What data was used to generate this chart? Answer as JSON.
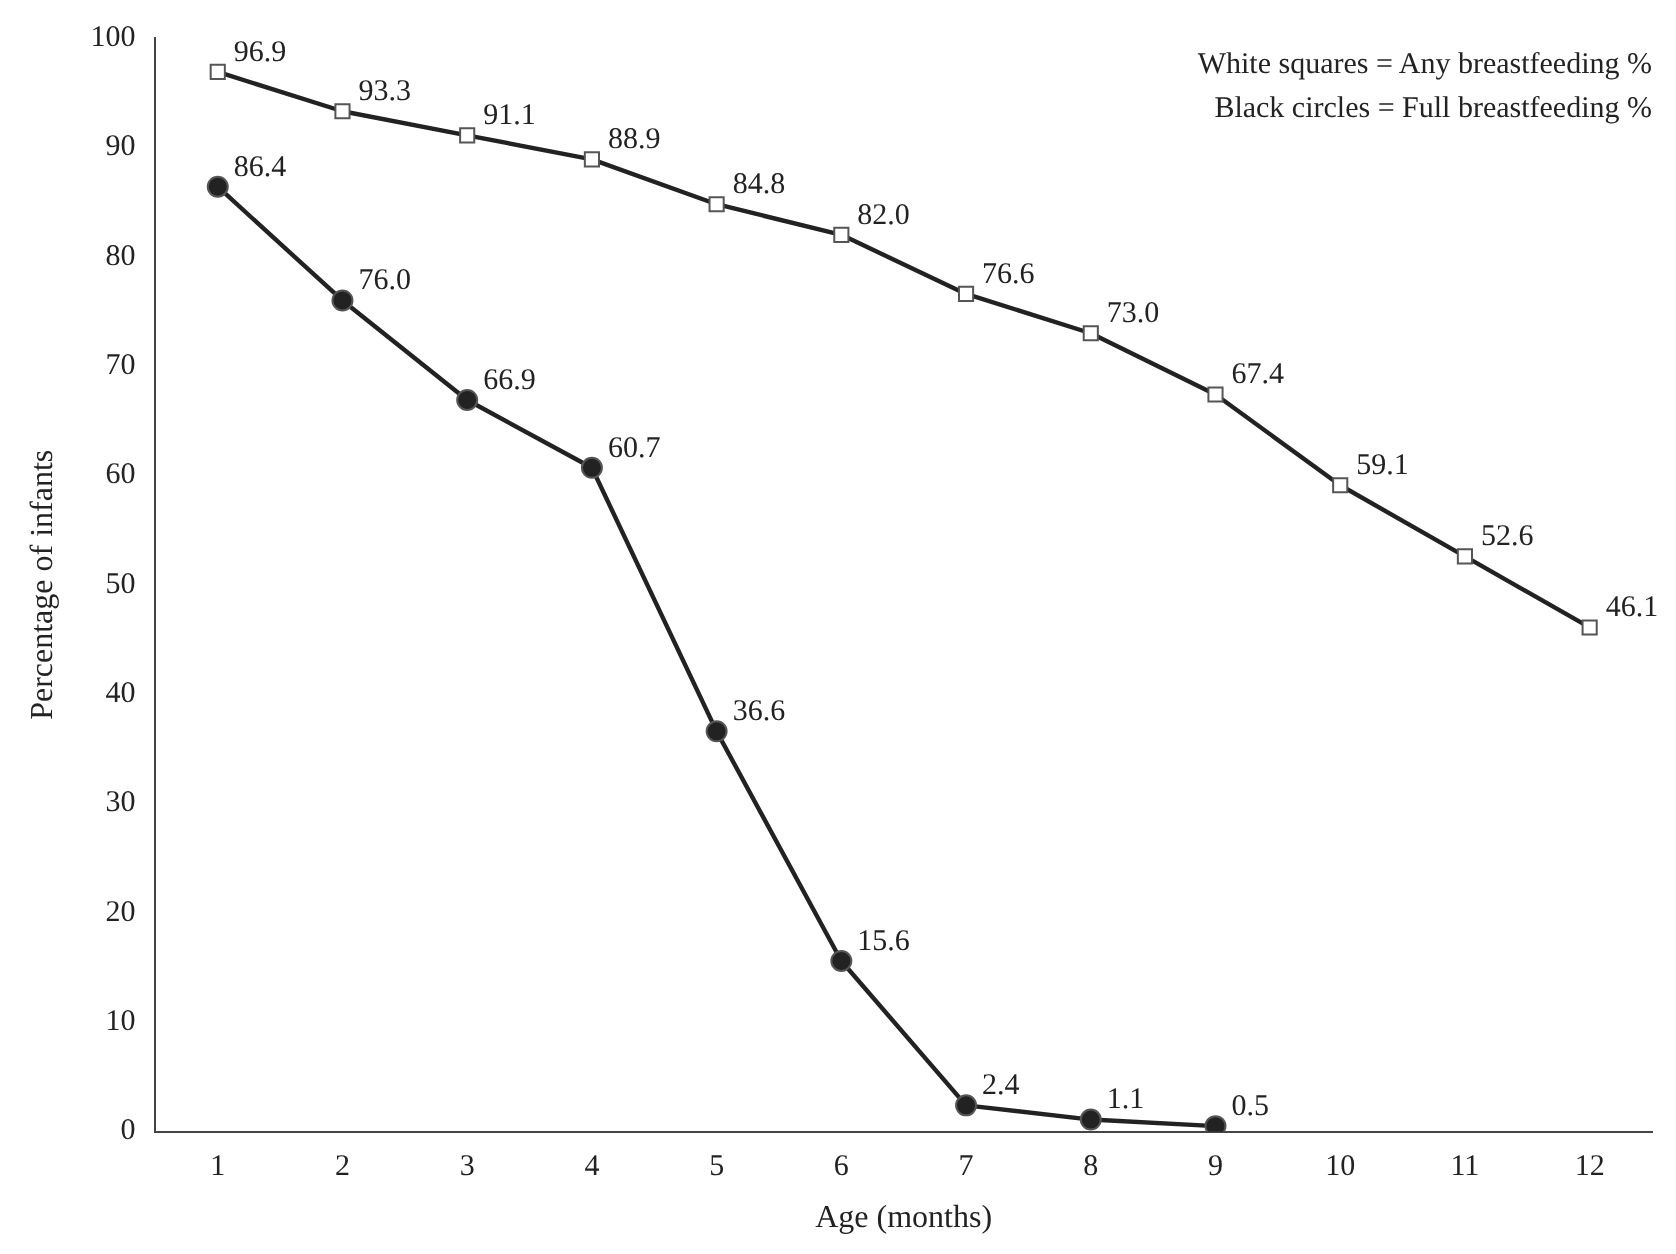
{
  "chart_data": {
    "type": "line",
    "xlabel": "Age (months)",
    "ylabel": "Percentage of infants",
    "x": [
      1,
      2,
      3,
      4,
      5,
      6,
      7,
      8,
      9,
      10,
      11,
      12
    ],
    "xlim": [
      0.5,
      12.5
    ],
    "xticks": [
      1,
      2,
      3,
      4,
      5,
      6,
      7,
      8,
      9,
      10,
      11,
      12
    ],
    "series": [
      {
        "color": "#222222",
        "marker": "square",
        "values": [
          96.9,
          93.3,
          91.1,
          88.9,
          84.8,
          82.0,
          76.6,
          73.0,
          67.4,
          59.1,
          52.6,
          46.1
        ],
        "value_labels": [
          "96.9",
          "93.3",
          "91.1",
          "88.9",
          "84.8",
          "82.0",
          "76.6",
          "73.0",
          "67.4",
          "59.1",
          "52.6",
          "46.1"
        ]
      },
      {
        "color": "#222222",
        "marker": "circle",
        "values": [
          86.4,
          76.0,
          66.9,
          60.7,
          36.6,
          15.6,
          2.4,
          1.1,
          0.5,
          null,
          null,
          null
        ],
        "value_labels": [
          "86.4",
          "76.0",
          "66.9",
          "60.7",
          "36.6",
          "15.6",
          "2.4",
          "1.1",
          "0.5",
          null,
          null,
          null
        ]
      }
    ],
    "ylim": [
      0,
      100
    ],
    "yticks": [
      0,
      10,
      20,
      30,
      40,
      50,
      60,
      70,
      80,
      90,
      100
    ],
    "grid": false,
    "legend": false,
    "annotations": [
      "White squares = Any breastfeeding %",
      "Black circles = Full breastfeeding %"
    ]
  }
}
